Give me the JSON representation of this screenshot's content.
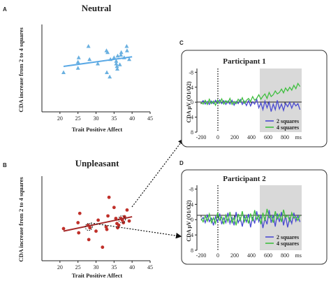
{
  "colors": {
    "neutral_marker": "#6ab0e0",
    "neutral_fit": "#5aa9e6",
    "unpleasant_marker": "#c0302a",
    "unpleasant_fit": "#a52a2a",
    "two_squares": "#4a4ad0",
    "four_squares": "#3fbf3f",
    "shade": "#d9d9d9"
  },
  "panels": {
    "A": "A",
    "B": "B",
    "C": "C",
    "D": "D"
  },
  "chart_data": [
    {
      "panel": "A",
      "type": "scatter",
      "title": "Neutral",
      "xlabel": "Trait Positive Affect",
      "ylabel": "CDA increase from 2 to 4 squares",
      "xlim": [
        15,
        45
      ],
      "xticks": [
        "20",
        "25",
        "30",
        "35",
        "40",
        "45"
      ],
      "marker": "triangle",
      "points": [
        [
          21.0,
          0.45
        ],
        [
          25.0,
          0.5
        ],
        [
          25.0,
          0.57
        ],
        [
          25.2,
          0.62
        ],
        [
          27.9,
          0.75
        ],
        [
          28.2,
          0.6
        ],
        [
          30.5,
          0.55
        ],
        [
          32.9,
          0.7
        ],
        [
          33.0,
          0.45
        ],
        [
          33.2,
          0.68
        ],
        [
          33.8,
          0.4
        ],
        [
          34.0,
          0.6
        ],
        [
          35.0,
          0.62
        ],
        [
          35.6,
          0.58
        ],
        [
          35.6,
          0.55
        ],
        [
          35.8,
          0.52
        ],
        [
          35.9,
          0.49
        ],
        [
          36.0,
          0.64
        ],
        [
          36.9,
          0.65
        ],
        [
          37.0,
          0.68
        ],
        [
          37.8,
          0.62
        ],
        [
          38.6,
          0.7
        ],
        [
          38.5,
          0.75
        ],
        [
          39.2,
          0.6
        ],
        [
          36.6,
          0.54
        ]
      ],
      "fit": [
        [
          21.0,
          0.52
        ],
        [
          40.0,
          0.63
        ]
      ]
    },
    {
      "panel": "B",
      "type": "scatter",
      "title": "Unpleasant",
      "xlabel": "Trait Positive Affect",
      "ylabel": "CDA increase from 2 to 4 squares",
      "xlim": [
        15,
        45
      ],
      "xticks": [
        "20",
        "25",
        "30",
        "35",
        "40",
        "45"
      ],
      "marker": "circle",
      "points": [
        [
          21.0,
          0.38
        ],
        [
          25.0,
          0.45
        ],
        [
          25.2,
          0.33
        ],
        [
          25.5,
          0.56
        ],
        [
          27.8,
          0.42
        ],
        [
          28.3,
          0.39
        ],
        [
          28.0,
          0.25
        ],
        [
          30.0,
          0.35
        ],
        [
          30.6,
          0.48
        ],
        [
          31.8,
          0.16
        ],
        [
          32.8,
          0.4
        ],
        [
          33.0,
          0.37
        ],
        [
          33.3,
          0.53
        ],
        [
          33.6,
          0.75
        ],
        [
          35.0,
          0.63
        ],
        [
          35.5,
          0.5
        ],
        [
          35.8,
          0.44
        ],
        [
          36.0,
          0.39
        ],
        [
          36.9,
          0.5
        ],
        [
          37.3,
          0.48
        ],
        [
          37.6,
          0.45
        ],
        [
          37.9,
          0.52
        ],
        [
          38.6,
          0.6
        ],
        [
          39.2,
          0.47
        ],
        [
          36.3,
          0.42
        ]
      ],
      "highlight": [
        [
          28.0,
          0.4
        ],
        [
          37.2,
          0.49
        ]
      ],
      "fit": [
        [
          21.0,
          0.35
        ],
        [
          40.0,
          0.52
        ]
      ]
    },
    {
      "panel": "C",
      "type": "line",
      "title": "Participant 1",
      "ylabel": "CDA µV (O1/O2)",
      "xlim": [
        -250,
        1000
      ],
      "ylim": [
        8,
        -9
      ],
      "xticks": [
        "-200",
        "0",
        "200",
        "400",
        "600",
        "800",
        "ms"
      ],
      "yticks": [
        "-8",
        "-4",
        "0",
        "4",
        "8"
      ],
      "shade": [
        500,
        1000
      ],
      "series": [
        {
          "name": "2 squares",
          "values": [
            0.2,
            -0.4,
            0.5,
            -0.2,
            0.6,
            -0.3,
            0.4,
            -0.5,
            0.3,
            -0.6,
            0.4,
            -0.4,
            0.6,
            -0.3,
            0.5,
            -0.5,
            0.8,
            -0.2,
            0.4,
            -0.7,
            0.6,
            -0.3,
            0.9,
            -0.4,
            1.0,
            -0.1,
            0.5,
            -0.8,
            1.5,
            0.2,
            2.0,
            -0.3,
            1.5,
            0.0,
            2.5,
            0.5,
            2.0,
            -0.5,
            1.8,
            0.5,
            2.2,
            0.3,
            1.2,
            0.0,
            1.6,
            0.2,
            1.0,
            0.4,
            2.0
          ]
        },
        {
          "name": "4 squares",
          "values": [
            0.0,
            0.5,
            -0.5,
            0.6,
            -0.8,
            0.4,
            -0.3,
            0.8,
            -0.6,
            0.3,
            -0.9,
            0.5,
            -0.4,
            0.2,
            -1.0,
            0.6,
            -0.2,
            0.4,
            -0.8,
            0.0,
            -1.2,
            0.3,
            -0.5,
            -1.0,
            -0.2,
            -1.5,
            -0.5,
            -1.0,
            -2.0,
            -0.8,
            -1.6,
            -2.2,
            -1.0,
            -2.6,
            -1.5,
            -2.0,
            -3.0,
            -2.2,
            -2.6,
            -3.5,
            -2.5,
            -3.8,
            -3.0,
            -4.0,
            -3.2,
            -4.5,
            -3.6,
            -5.0,
            -4.2
          ]
        }
      ]
    },
    {
      "panel": "D",
      "type": "line",
      "title": "Participant 2",
      "ylabel": "CDA µV (O1/O2)",
      "xlim": [
        -250,
        1000
      ],
      "ylim": [
        8,
        -9
      ],
      "xticks": [
        "-200",
        "0",
        "200",
        "400",
        "600",
        "800",
        "ms"
      ],
      "yticks": [
        "-8",
        "-4",
        "0",
        "4",
        "8"
      ],
      "shade": [
        500,
        1000
      ],
      "series": [
        {
          "name": "2 squares",
          "values": [
            0.2,
            -0.6,
            0.8,
            -1.2,
            0.5,
            -0.4,
            1.5,
            -0.8,
            0.6,
            -1.6,
            1.2,
            -0.5,
            0.8,
            -1.8,
            1.0,
            -0.6,
            1.5,
            -2.0,
            0.8,
            -0.4,
            1.8,
            -1.0,
            0.6,
            -1.5,
            2.0,
            -0.8,
            1.0,
            -2.2,
            0.5,
            -1.0,
            2.2,
            -0.3,
            1.2,
            -2.5,
            0.8,
            -1.2,
            1.8,
            -1.6,
            0.6,
            -2.0,
            1.5,
            -1.0,
            2.0,
            -0.5,
            1.0,
            -1.8,
            0.4,
            -1.0,
            0.6
          ]
        },
        {
          "name": "4 squares",
          "values": [
            -0.3,
            0.6,
            -1.0,
            0.4,
            -1.5,
            0.8,
            -0.5,
            1.0,
            -1.8,
            0.2,
            -0.8,
            1.2,
            -1.2,
            0.5,
            -2.0,
            0.8,
            -0.6,
            1.5,
            -1.5,
            0.2,
            -2.2,
            0.6,
            -1.0,
            1.0,
            -1.6,
            0.4,
            -2.5,
            0.0,
            -1.2,
            1.2,
            -1.8,
            0.3,
            -2.8,
            -0.5,
            -1.0,
            0.8,
            -2.2,
            -0.2,
            -1.4,
            0.6,
            -2.6,
            -0.6,
            -1.2,
            0.4,
            -1.8,
            -0.4,
            -0.8,
            0.2,
            -1.2
          ]
        }
      ]
    }
  ]
}
